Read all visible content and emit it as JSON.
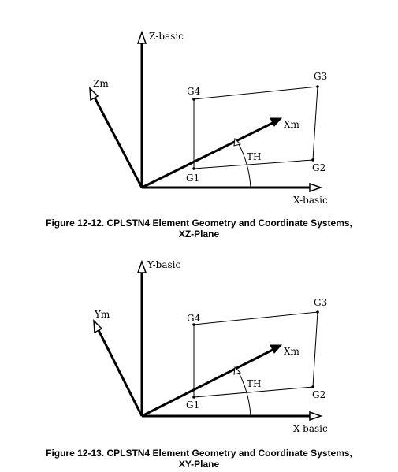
{
  "figures": [
    {
      "axis_vertical": "Z-basic",
      "axis_horizontal": "X-basic",
      "axis_m_vertical": "Zm",
      "axis_m_horizontal": "Xm",
      "angle": "TH",
      "grid_points": [
        "G1",
        "G2",
        "G3",
        "G4"
      ],
      "caption_line1": "Figure 12-12.  CPLSTN4 Element Geometry and Coordinate Systems,",
      "caption_line2": "XZ-Plane"
    },
    {
      "axis_vertical": "Y-basic",
      "axis_horizontal": "X-basic",
      "axis_m_vertical": "Ym",
      "axis_m_horizontal": "Xm",
      "angle": "TH",
      "grid_points": [
        "G1",
        "G2",
        "G3",
        "G4"
      ],
      "caption_line1": "Figure 12-13.  CPLSTN4 Element Geometry and Coordinate Systems,",
      "caption_line2": "XY-Plane"
    }
  ]
}
